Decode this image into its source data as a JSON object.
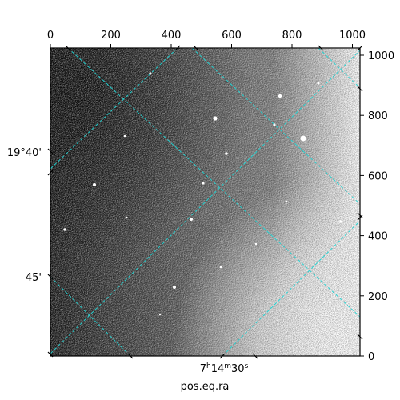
{
  "axes": {
    "top_ticks": [
      "0",
      "200",
      "400",
      "600",
      "800",
      "1000"
    ],
    "right_ticks": [
      "0",
      "200",
      "400",
      "600",
      "800",
      "1000"
    ],
    "dec_labels": [
      "19°40'",
      "45'"
    ],
    "ra_label": "7h14m30s",
    "xlabel": "pos.eq.ra"
  },
  "colors": {
    "grid": "#22d3d3",
    "frame": "#000000"
  },
  "image": {
    "description_free": true,
    "colormap": "gray"
  }
}
